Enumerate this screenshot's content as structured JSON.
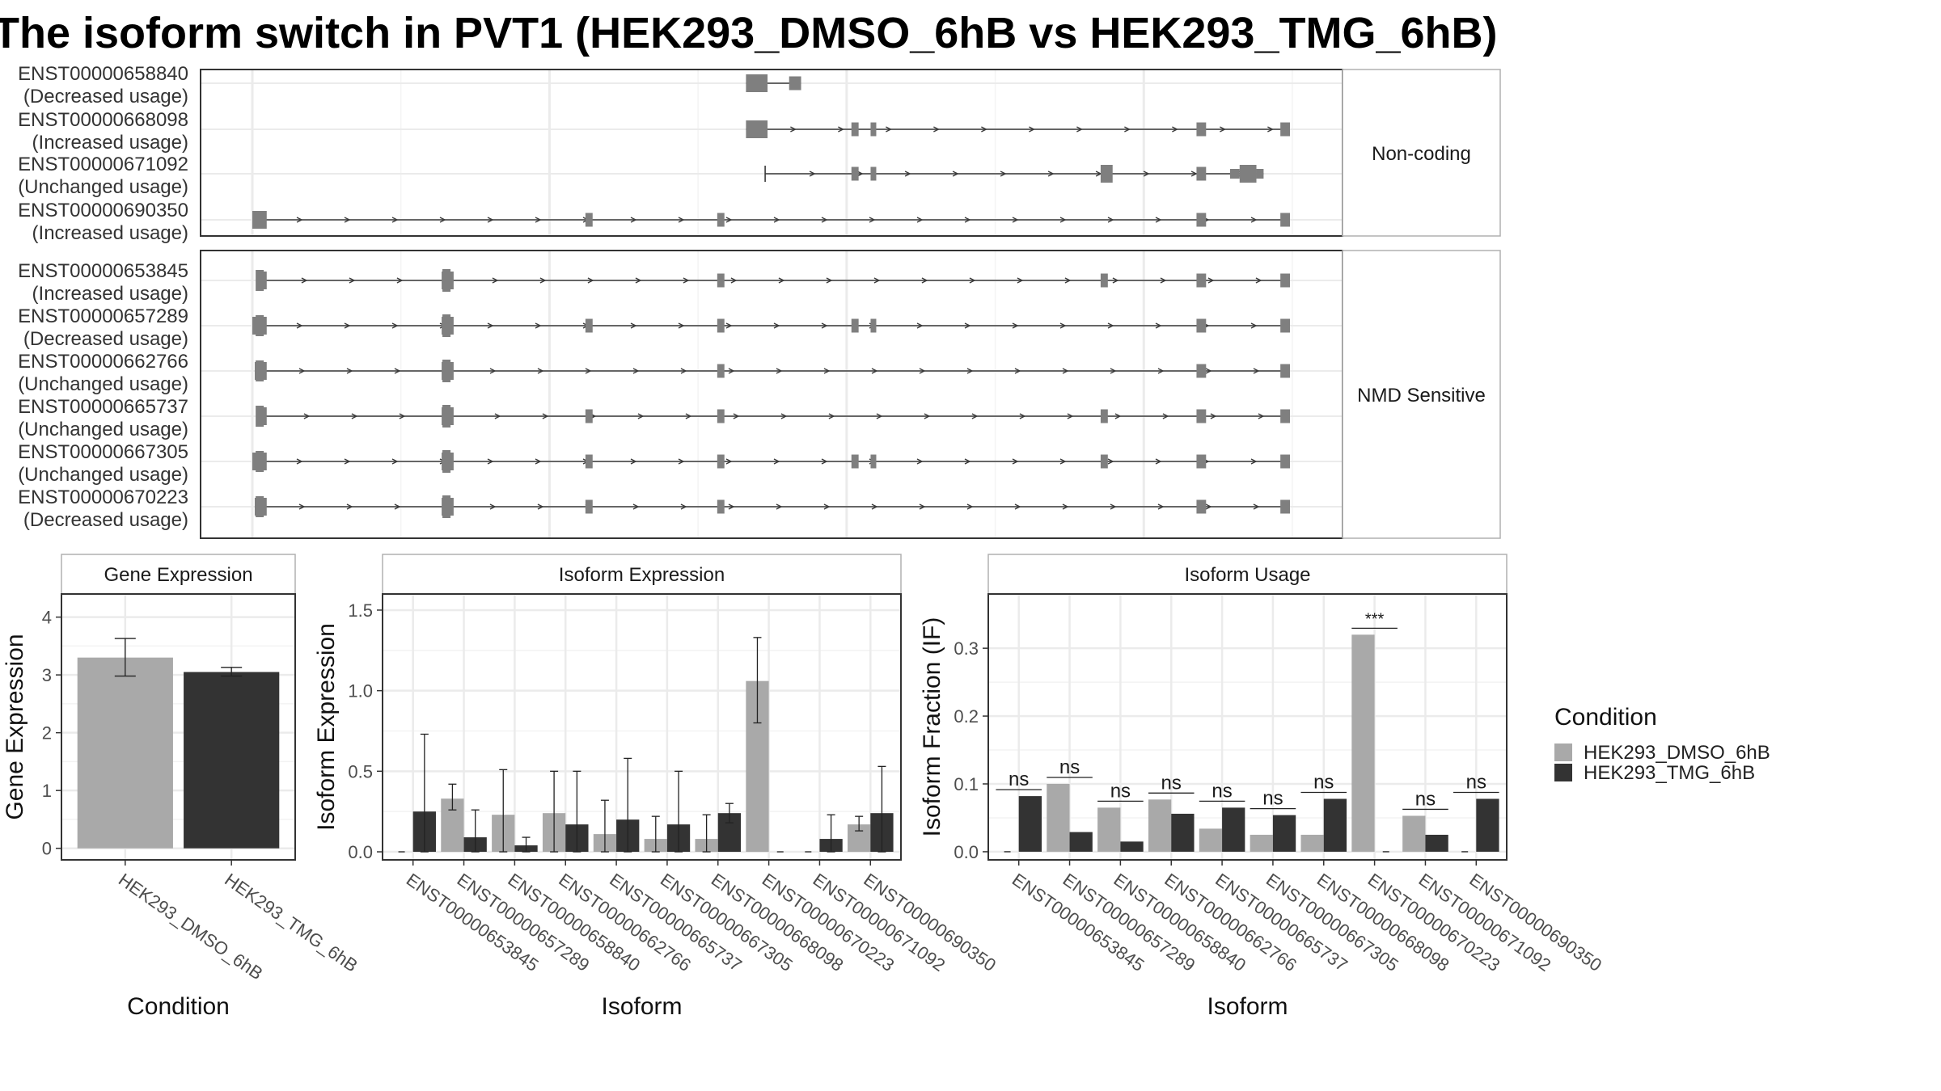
{
  "title": "The isoform switch in PVT1 (HEK293_DMSO_6hB vs HEK293_TMG_6hB)",
  "colors": {
    "dmso": "#a9a9a9",
    "tmg": "#333333",
    "exon": "#7f7f7f",
    "intron": "#3a3a3a",
    "grid": "#ebebeb",
    "frame": "#333333"
  },
  "structure": {
    "facets": [
      {
        "label": "Non-coding",
        "transcripts": [
          {
            "id": "ENST00000658840",
            "status": "(Decreased usage)",
            "exons": [
              [
                103000.0,
                107500.0,
                "b"
              ],
              [
                112000.0,
                114500.0,
                "s"
              ]
            ],
            "arrows": false
          },
          {
            "id": "ENST00000668098",
            "status": "(Increased usage)",
            "exons": [
              [
                103000.0,
                107500.0,
                "b"
              ],
              [
                125000.0,
                126500.0,
                "s"
              ],
              [
                129000.0,
                130000.0,
                "s"
              ],
              [
                197000.0,
                199000.0,
                "s"
              ],
              [
                214500.0,
                216500.0,
                "s"
              ]
            ],
            "arrows": true
          },
          {
            "id": "ENST00000671092",
            "status": "(Unchanged usage)",
            "exons": [
              [
                107000.0,
                107300.0,
                "t"
              ],
              [
                125000.0,
                126500.0,
                "s"
              ],
              [
                129000.0,
                130000.0,
                "s"
              ],
              [
                177000.0,
                179500.0,
                "b"
              ],
              [
                197000.0,
                199000.0,
                "s"
              ],
              [
                204000.0,
                206000.0,
                "m"
              ],
              [
                206000.0,
                209500.0,
                "b"
              ],
              [
                209500.0,
                211000.0,
                "m"
              ]
            ],
            "arrows": true
          },
          {
            "id": "ENST00000690350",
            "status": "(Increased usage)",
            "exons": [
              [
                0.0,
                3000.0,
                "b"
              ],
              [
                69500.0,
                71000.0,
                "s"
              ],
              [
                97000.0,
                98500.0,
                "s"
              ],
              [
                197000.0,
                199000.0,
                "s"
              ],
              [
                214500.0,
                216500.0,
                "s"
              ]
            ],
            "arrows": true
          }
        ]
      },
      {
        "label": "NMD Sensitive",
        "transcripts": [
          {
            "id": "ENST00000653845",
            "status": "(Increased usage)",
            "exons": [
              [
                1000.0,
                3000.0,
                "b"
              ],
              [
                39500.0,
                42000.0,
                "b"
              ],
              [
                97000.0,
                98500.0,
                "s"
              ],
              [
                177000.0,
                178500.0,
                "s"
              ],
              [
                197000.0,
                199000.0,
                "s"
              ],
              [
                214500.0,
                216500.0,
                "s"
              ]
            ],
            "arrows": true
          },
          {
            "id": "ENST00000657289",
            "status": "(Decreased usage)",
            "exons": [
              [
                0.0,
                3000.0,
                "b"
              ],
              [
                39500.0,
                42000.0,
                "b"
              ],
              [
                69500.0,
                71000.0,
                "s"
              ],
              [
                97000.0,
                98500.0,
                "s"
              ],
              [
                125000.0,
                126500.0,
                "s"
              ],
              [
                129000.0,
                130000.0,
                "s"
              ],
              [
                197000.0,
                199000.0,
                "s"
              ],
              [
                214500.0,
                216500.0,
                "s"
              ]
            ],
            "arrows": true
          },
          {
            "id": "ENST00000662766",
            "status": "(Unchanged usage)",
            "exons": [
              [
                500.0,
                3000.0,
                "b"
              ],
              [
                39500.0,
                42000.0,
                "b"
              ],
              [
                97000.0,
                98500.0,
                "s"
              ],
              [
                197000.0,
                199000.0,
                "s"
              ],
              [
                214500.0,
                216500.0,
                "s"
              ]
            ],
            "arrows": true
          },
          {
            "id": "ENST00000665737",
            "status": "(Unchanged usage)",
            "exons": [
              [
                1500.0,
                3000.0,
                "b"
              ],
              [
                39500.0,
                42000.0,
                "b"
              ],
              [
                69500.0,
                71000.0,
                "s"
              ],
              [
                97000.0,
                98500.0,
                "s"
              ],
              [
                177000.0,
                178500.0,
                "s"
              ],
              [
                197000.0,
                199000.0,
                "s"
              ],
              [
                214500.0,
                216500.0,
                "s"
              ]
            ],
            "arrows": true
          },
          {
            "id": "ENST00000667305",
            "status": "(Unchanged usage)",
            "exons": [
              [
                0.0,
                3000.0,
                "b"
              ],
              [
                39500.0,
                42000.0,
                "b"
              ],
              [
                69500.0,
                71000.0,
                "s"
              ],
              [
                97000.0,
                98500.0,
                "s"
              ],
              [
                125000.0,
                126500.0,
                "s"
              ],
              [
                129000.0,
                130000.0,
                "s"
              ],
              [
                177000.0,
                178500.0,
                "s"
              ],
              [
                197000.0,
                199000.0,
                "s"
              ],
              [
                214500.0,
                216500.0,
                "s"
              ]
            ],
            "arrows": true
          },
          {
            "id": "ENST00000670223",
            "status": "(Decreased usage)",
            "exons": [
              [
                500.0,
                3000.0,
                "b"
              ],
              [
                39500.0,
                42000.0,
                "b"
              ],
              [
                69500.0,
                71000.0,
                "s"
              ],
              [
                97000.0,
                98500.0,
                "s"
              ],
              [
                197000.0,
                199000.0,
                "s"
              ],
              [
                214500.0,
                216500.0,
                "s"
              ]
            ],
            "arrows": true
          }
        ]
      }
    ]
  },
  "chart_data": [
    {
      "type": "bar",
      "title": "Gene Expression",
      "xlabel": "Condition",
      "ylabel": "Gene Expression",
      "categories": [
        "HEK293_DMSO_6hB",
        "HEK293_TMG_6hB"
      ],
      "values": [
        3.3,
        3.05
      ],
      "errors": [
        [
          2.98,
          3.63
        ],
        [
          2.98,
          3.13
        ]
      ],
      "ylim": [
        -0.2,
        4.4
      ],
      "yticks": [
        "0",
        "1",
        "2",
        "3",
        "4"
      ],
      "ytick_values": [
        0,
        1,
        2,
        3,
        4
      ]
    },
    {
      "type": "bar",
      "title": "Isoform Expression",
      "xlabel": "Isoform",
      "ylabel": "Isoform Expression",
      "categories": [
        "ENST00000653845",
        "ENST00000657289",
        "ENST00000658840",
        "ENST00000662766",
        "ENST00000665737",
        "ENST00000667305",
        "ENST00000668098",
        "ENST00000670223",
        "ENST00000671092",
        "ENST00000690350"
      ],
      "series": [
        {
          "name": "HEK293_DMSO_6hB",
          "values": [
            0.0,
            0.33,
            0.23,
            0.24,
            0.11,
            0.08,
            0.08,
            1.06,
            0.0,
            0.17
          ],
          "errors": [
            [
              0,
              0
            ],
            [
              0.26,
              0.42
            ],
            [
              0,
              0.51
            ],
            [
              0,
              0.5
            ],
            [
              0,
              0.32
            ],
            [
              0,
              0.22
            ],
            [
              0,
              0.23
            ],
            [
              0.8,
              1.33
            ],
            [
              0,
              0
            ],
            [
              0.13,
              0.22
            ]
          ]
        },
        {
          "name": "HEK293_TMG_6hB",
          "values": [
            0.25,
            0.09,
            0.04,
            0.17,
            0.2,
            0.17,
            0.24,
            0.0,
            0.08,
            0.24
          ],
          "errors": [
            [
              0,
              0.73
            ],
            [
              0,
              0.26
            ],
            [
              0,
              0.09
            ],
            [
              0,
              0.5
            ],
            [
              0,
              0.58
            ],
            [
              0,
              0.5
            ],
            [
              0.18,
              0.3
            ],
            [
              0,
              0
            ],
            [
              0,
              0.23
            ],
            [
              0,
              0.53
            ]
          ]
        }
      ],
      "ylim": [
        -0.05,
        1.6
      ],
      "yticks": [
        "0.0",
        "0.5",
        "1.0",
        "1.5"
      ],
      "ytick_values": [
        0,
        0.5,
        1.0,
        1.5
      ]
    },
    {
      "type": "bar",
      "title": "Isoform Usage",
      "xlabel": "Isoform",
      "ylabel": "Isoform Fraction (IF)",
      "categories": [
        "ENST00000653845",
        "ENST00000657289",
        "ENST00000658840",
        "ENST00000662766",
        "ENST00000665737",
        "ENST00000667305",
        "ENST00000668098",
        "ENST00000670223",
        "ENST00000671092",
        "ENST00000690350"
      ],
      "series": [
        {
          "name": "HEK293_DMSO_6hB",
          "values": [
            0.0,
            0.1,
            0.065,
            0.077,
            0.034,
            0.025,
            0.025,
            0.32,
            0.053,
            0.0
          ]
        },
        {
          "name": "HEK293_TMG_6hB",
          "values": [
            0.082,
            0.029,
            0.015,
            0.056,
            0.065,
            0.054,
            0.078,
            0.0,
            0.025,
            0.078
          ]
        }
      ],
      "significance": [
        "ns",
        "ns",
        "ns",
        "ns",
        "ns",
        "ns",
        "ns",
        "***",
        "ns",
        "ns"
      ],
      "ylim": [
        -0.012,
        0.38
      ],
      "yticks": [
        "0.0",
        "0.1",
        "0.2",
        "0.3"
      ],
      "ytick_values": [
        0,
        0.1,
        0.2,
        0.3
      ]
    }
  ],
  "legend": {
    "title": "Condition",
    "items": [
      {
        "label": "HEK293_DMSO_6hB",
        "color": "#a9a9a9"
      },
      {
        "label": "HEK293_TMG_6hB",
        "color": "#333333"
      }
    ]
  }
}
